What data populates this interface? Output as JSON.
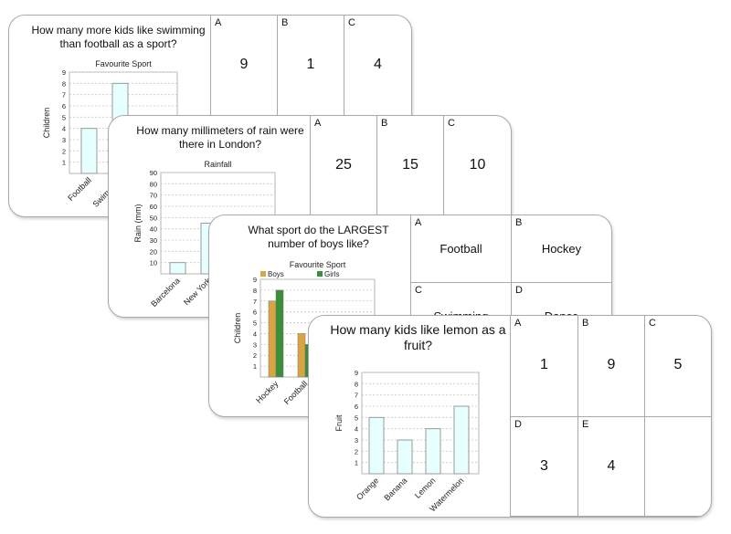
{
  "card1": {
    "question": "How many more kids like swimming than football as a sport?",
    "options": [
      {
        "letter": "A",
        "value": "9"
      },
      {
        "letter": "B",
        "value": "1"
      },
      {
        "letter": "C",
        "value": "4"
      }
    ]
  },
  "card2": {
    "question": "How many millimeters of rain were there in London?",
    "options": [
      {
        "letter": "A",
        "value": "25"
      },
      {
        "letter": "B",
        "value": "15"
      },
      {
        "letter": "C",
        "value": "10"
      }
    ]
  },
  "card3": {
    "question": "What sport do the LARGEST number of boys like?",
    "options": [
      {
        "letter": "A",
        "value": "Football"
      },
      {
        "letter": "B",
        "value": "Hockey"
      },
      {
        "letter": "C",
        "value": "Swimming"
      },
      {
        "letter": "D",
        "value": "Dance"
      }
    ]
  },
  "card4": {
    "question": "How many kids like lemon as a fruit?",
    "options": [
      {
        "letter": "A",
        "value": "1"
      },
      {
        "letter": "B",
        "value": "9"
      },
      {
        "letter": "C",
        "value": "5"
      },
      {
        "letter": "D",
        "value": "3"
      },
      {
        "letter": "E",
        "value": "4"
      }
    ]
  },
  "colors": {
    "bar_fill": "#e6ffff",
    "bar_stroke": "#9a9a9a",
    "boys": "#d9a544",
    "girls": "#3b8f3b",
    "card_border": "#a9a9a9"
  },
  "chart_data": [
    {
      "type": "bar",
      "title": "Favourite Sport",
      "ylabel": "Children",
      "xlabel": "",
      "categories": [
        "Football",
        "Swimming"
      ],
      "values": [
        4,
        8
      ],
      "ylim": [
        0,
        9
      ],
      "grid": true
    },
    {
      "type": "bar",
      "title": "Rainfall",
      "ylabel": "Rain (mm)",
      "xlabel": "",
      "categories": [
        "Barcelona",
        "New York"
      ],
      "values": [
        10,
        45
      ],
      "ylim": [
        0,
        90
      ],
      "grid": true
    },
    {
      "type": "bar",
      "title": "Favourite Sport",
      "ylabel": "Children",
      "xlabel": "",
      "categories": [
        "Hockey",
        "Football"
      ],
      "series": [
        {
          "name": "Boys",
          "values": [
            7,
            4
          ]
        },
        {
          "name": "Girls",
          "values": [
            8,
            3
          ]
        }
      ],
      "ylim": [
        0,
        9
      ],
      "grid": true,
      "legend": "top-left"
    },
    {
      "type": "bar",
      "title": "",
      "ylabel": "Fruit",
      "xlabel": "",
      "categories": [
        "Orange",
        "Banana",
        "Lemon",
        "Watermelon"
      ],
      "values": [
        5,
        3,
        4,
        6
      ],
      "ylim": [
        0,
        9
      ],
      "grid": true
    }
  ]
}
